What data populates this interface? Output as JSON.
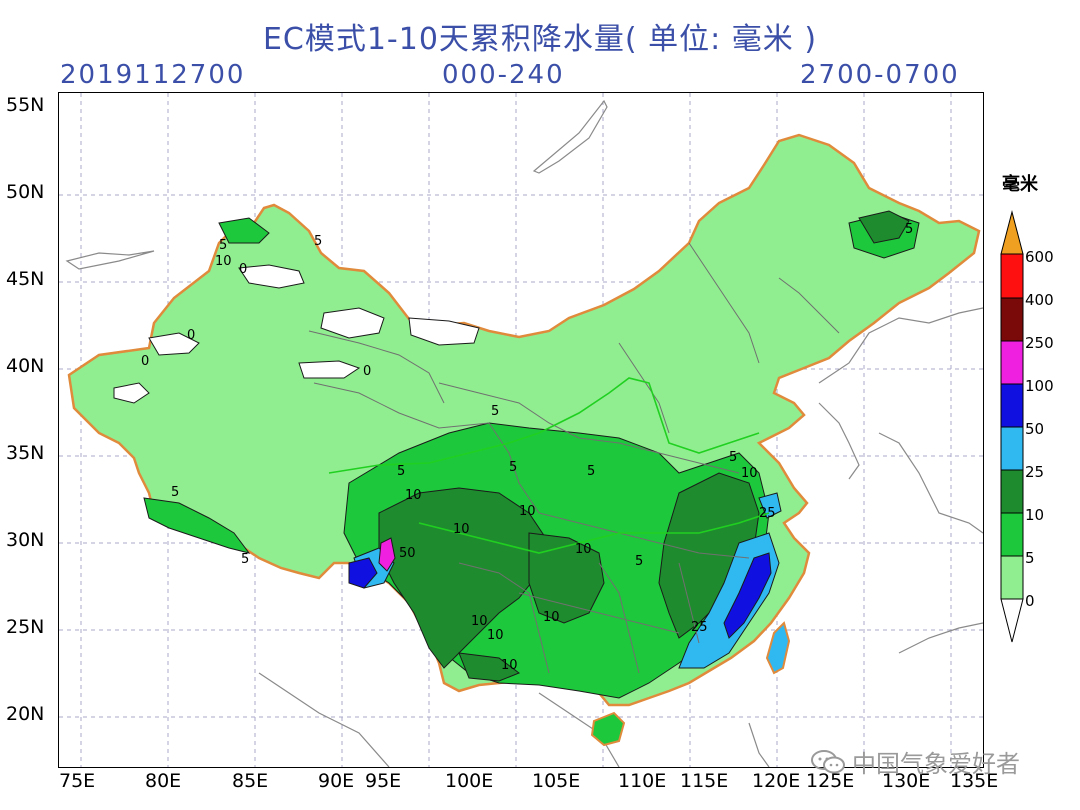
{
  "header": {
    "title": "EC模式1-10天累积降水量( 单位: 毫米 )",
    "init_time": "2019112700",
    "forecast_hours": "000-240",
    "valid_period": "2700-0700"
  },
  "axes": {
    "lat_labels": [
      "55N",
      "50N",
      "45N",
      "40N",
      "35N",
      "30N",
      "25N",
      "20N"
    ],
    "lon_labels": [
      "75E",
      "80E",
      "85E",
      "90E",
      "95E",
      "100E",
      "105E",
      "110E",
      "115E",
      "120E",
      "125E",
      "130E",
      "135E"
    ]
  },
  "legend": {
    "unit": "毫米",
    "levels": [
      {
        "label": "600",
        "color": "#f0a020"
      },
      {
        "label": "400",
        "color": "#ff1010"
      },
      {
        "label": "250",
        "color": "#7a0a0a"
      },
      {
        "label": "100",
        "color": "#f020e0"
      },
      {
        "label": "50",
        "color": "#1010e0"
      },
      {
        "label": "25",
        "color": "#30b8f0"
      },
      {
        "label": "10",
        "color": "#1e8c2e"
      },
      {
        "label": "5",
        "color": "#1ec83c"
      },
      {
        "label": "0",
        "color": "#90ee90"
      }
    ]
  },
  "contour_labels": [
    "0",
    "0",
    "0",
    "0",
    "5",
    "5",
    "5",
    "5",
    "5",
    "5",
    "5",
    "5",
    "5",
    "5",
    "5",
    "10",
    "10",
    "10",
    "10",
    "10",
    "10",
    "10",
    "10",
    "10",
    "10",
    "25",
    "25",
    "50"
  ],
  "colors": {
    "land_fill": "#90ee90",
    "light_rain": "#1ec83c",
    "moderate": "#1e8c2e",
    "heavy": "#30b8f0",
    "very_heavy": "#1010e0",
    "extreme": "#f020e0",
    "border": "#e08a3c",
    "title": "#3b4fa8"
  },
  "watermark": {
    "text": "中国气象爱好者"
  }
}
